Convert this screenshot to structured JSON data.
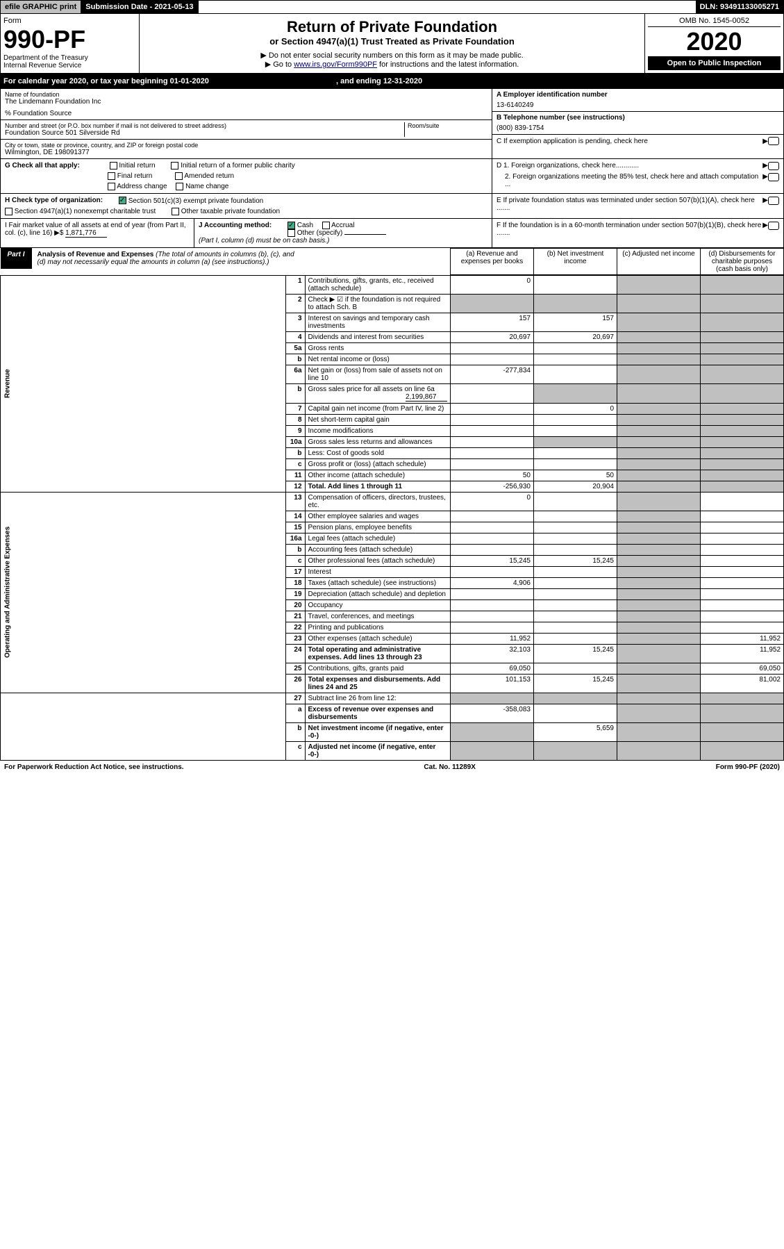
{
  "topbar": {
    "efile": "efile GRAPHIC print",
    "submission": "Submission Date - 2021-05-13",
    "dln": "DLN: 93491133005271"
  },
  "header": {
    "form_label": "Form",
    "form_number": "990-PF",
    "dept1": "Department of the Treasury",
    "dept2": "Internal Revenue Service",
    "title": "Return of Private Foundation",
    "subtitle": "or Section 4947(a)(1) Trust Treated as Private Foundation",
    "note1": "▶ Do not enter social security numbers on this form as it may be made public.",
    "note2_pre": "▶ Go to ",
    "note2_link": "www.irs.gov/Form990PF",
    "note2_post": " for instructions and the latest information.",
    "omb": "OMB No. 1545-0052",
    "year": "2020",
    "open": "Open to Public Inspection"
  },
  "calendar": {
    "text_pre": "For calendar year 2020, or tax year beginning ",
    "begin": "01-01-2020",
    "mid": " , and ending ",
    "end": "12-31-2020"
  },
  "name_block": {
    "label": "Name of foundation",
    "name": "The Lindemann Foundation Inc",
    "co": "% Foundation Source",
    "addr_label": "Number and street (or P.O. box number if mail is not delivered to street address)",
    "addr": "Foundation Source 501 Silverside Rd",
    "room_label": "Room/suite",
    "city_label": "City or town, state or province, country, and ZIP or foreign postal code",
    "city": "Wilmington, DE  198091377"
  },
  "right_block": {
    "a_label": "A Employer identification number",
    "a_val": "13-6140249",
    "b_label": "B Telephone number (see instructions)",
    "b_val": "(800) 839-1754",
    "c_label": "C If exemption application is pending, check here",
    "d1": "D 1. Foreign organizations, check here............",
    "d2": "2. Foreign organizations meeting the 85% test, check here and attach computation ...",
    "e": "E  If private foundation status was terminated under section 507(b)(1)(A), check here .......",
    "f": "F  If the foundation is in a 60-month termination under section 507(b)(1)(B), check here ......."
  },
  "g_row": {
    "label": "G Check all that apply:",
    "opts": [
      "Initial return",
      "Final return",
      "Address change",
      "Initial return of a former public charity",
      "Amended return",
      "Name change"
    ]
  },
  "h_row": {
    "label": "H Check type of organization:",
    "opt1": "Section 501(c)(3) exempt private foundation",
    "opt2": "Section 4947(a)(1) nonexempt charitable trust",
    "opt3": "Other taxable private foundation"
  },
  "i_row": {
    "label": "I Fair market value of all assets at end of year (from Part II, col. (c), line 16) ▶$ ",
    "val": "1,871,776"
  },
  "j_row": {
    "label": "J Accounting method:",
    "cash": "Cash",
    "accrual": "Accrual",
    "other": "Other (specify)",
    "note": "(Part I, column (d) must be on cash basis.)"
  },
  "part1": {
    "tab": "Part I",
    "title": "Analysis of Revenue and Expenses",
    "desc": " (The total of amounts in columns (b), (c), and (d) may not necessarily equal the amounts in column (a) (see instructions).)",
    "col_a": "(a)   Revenue and expenses per books",
    "col_b": "(b)  Net investment income",
    "col_c": "(c)  Adjusted net income",
    "col_d": "(d)  Disbursements for charitable purposes (cash basis only)"
  },
  "side_labels": {
    "revenue": "Revenue",
    "expenses": "Operating and Administrative Expenses"
  },
  "rows": [
    {
      "n": "1",
      "t": "Contributions, gifts, grants, etc., received (attach schedule)",
      "a": "0"
    },
    {
      "n": "2",
      "t": "Check ▶ ☑ if the foundation is not required to attach Sch. B"
    },
    {
      "n": "3",
      "t": "Interest on savings and temporary cash investments",
      "a": "157",
      "b": "157"
    },
    {
      "n": "4",
      "t": "Dividends and interest from securities",
      "a": "20,697",
      "b": "20,697"
    },
    {
      "n": "5a",
      "t": "Gross rents"
    },
    {
      "n": "b",
      "t": "Net rental income or (loss)"
    },
    {
      "n": "6a",
      "t": "Net gain or (loss) from sale of assets not on line 10",
      "a": "-277,834"
    },
    {
      "n": "b",
      "t": "Gross sales price for all assets on line 6a",
      "inline": "2,199,867"
    },
    {
      "n": "7",
      "t": "Capital gain net income (from Part IV, line 2)",
      "b": "0"
    },
    {
      "n": "8",
      "t": "Net short-term capital gain"
    },
    {
      "n": "9",
      "t": "Income modifications"
    },
    {
      "n": "10a",
      "t": "Gross sales less returns and allowances"
    },
    {
      "n": "b",
      "t": "Less: Cost of goods sold"
    },
    {
      "n": "c",
      "t": "Gross profit or (loss) (attach schedule)"
    },
    {
      "n": "11",
      "t": "Other income (attach schedule)",
      "a": "50",
      "b": "50"
    },
    {
      "n": "12",
      "t": "Total. Add lines 1 through 11",
      "a": "-256,930",
      "b": "20,904",
      "bold": true
    }
  ],
  "exp_rows": [
    {
      "n": "13",
      "t": "Compensation of officers, directors, trustees, etc.",
      "a": "0"
    },
    {
      "n": "14",
      "t": "Other employee salaries and wages"
    },
    {
      "n": "15",
      "t": "Pension plans, employee benefits"
    },
    {
      "n": "16a",
      "t": "Legal fees (attach schedule)"
    },
    {
      "n": "b",
      "t": "Accounting fees (attach schedule)"
    },
    {
      "n": "c",
      "t": "Other professional fees (attach schedule)",
      "a": "15,245",
      "b": "15,245"
    },
    {
      "n": "17",
      "t": "Interest"
    },
    {
      "n": "18",
      "t": "Taxes (attach schedule) (see instructions)",
      "a": "4,906"
    },
    {
      "n": "19",
      "t": "Depreciation (attach schedule) and depletion"
    },
    {
      "n": "20",
      "t": "Occupancy"
    },
    {
      "n": "21",
      "t": "Travel, conferences, and meetings"
    },
    {
      "n": "22",
      "t": "Printing and publications"
    },
    {
      "n": "23",
      "t": "Other expenses (attach schedule)",
      "a": "11,952",
      "d": "11,952"
    },
    {
      "n": "24",
      "t": "Total operating and administrative expenses. Add lines 13 through 23",
      "a": "32,103",
      "b": "15,245",
      "d": "11,952",
      "bold": true
    },
    {
      "n": "25",
      "t": "Contributions, gifts, grants paid",
      "a": "69,050",
      "d": "69,050"
    },
    {
      "n": "26",
      "t": "Total expenses and disbursements. Add lines 24 and 25",
      "a": "101,153",
      "b": "15,245",
      "d": "81,002",
      "bold": true
    }
  ],
  "bottom_rows": [
    {
      "n": "27",
      "t": "Subtract line 26 from line 12:"
    },
    {
      "n": "a",
      "t": "Excess of revenue over expenses and disbursements",
      "a": "-358,083",
      "bold": true
    },
    {
      "n": "b",
      "t": "Net investment income (if negative, enter -0-)",
      "b": "5,659",
      "bold": true
    },
    {
      "n": "c",
      "t": "Adjusted net income (if negative, enter -0-)",
      "bold": true
    }
  ],
  "footer": {
    "left": "For Paperwork Reduction Act Notice, see instructions.",
    "mid": "Cat. No. 11289X",
    "right": "Form 990-PF (2020)"
  }
}
